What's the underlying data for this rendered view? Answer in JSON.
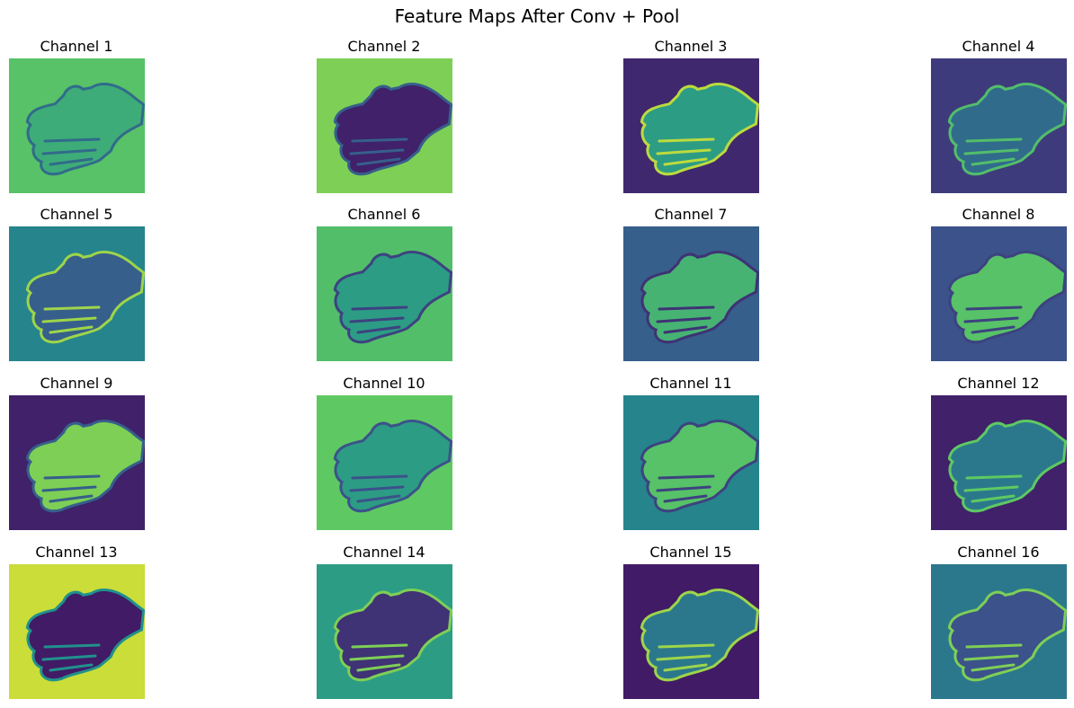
{
  "figure": {
    "title": "Feature Maps After Conv + Pool",
    "colormap": [
      "#440154",
      "#3b528b",
      "#21918c",
      "#5ec962",
      "#fde725"
    ],
    "panels": [
      {
        "title": "Channel 1",
        "bg": 0.72,
        "hand": 0.62,
        "edge": 0.35
      },
      {
        "title": "Channel 2",
        "bg": 0.8,
        "hand": 0.1,
        "edge": 0.3
      },
      {
        "title": "Channel 3",
        "bg": 0.12,
        "hand": 0.55,
        "edge": 0.9
      },
      {
        "title": "Channel 4",
        "bg": 0.18,
        "hand": 0.35,
        "edge": 0.7
      },
      {
        "title": "Channel 5",
        "bg": 0.45,
        "hand": 0.3,
        "edge": 0.85
      },
      {
        "title": "Channel 6",
        "bg": 0.7,
        "hand": 0.55,
        "edge": 0.2
      },
      {
        "title": "Channel 7",
        "bg": 0.3,
        "hand": 0.65,
        "edge": 0.15
      },
      {
        "title": "Channel 8",
        "bg": 0.25,
        "hand": 0.72,
        "edge": 0.2
      },
      {
        "title": "Channel 9",
        "bg": 0.1,
        "hand": 0.8,
        "edge": 0.3
      },
      {
        "title": "Channel 10",
        "bg": 0.75,
        "hand": 0.55,
        "edge": 0.25
      },
      {
        "title": "Channel 11",
        "bg": 0.45,
        "hand": 0.72,
        "edge": 0.2
      },
      {
        "title": "Channel 12",
        "bg": 0.1,
        "hand": 0.4,
        "edge": 0.75
      },
      {
        "title": "Channel 13",
        "bg": 0.92,
        "hand": 0.08,
        "edge": 0.5
      },
      {
        "title": "Channel 14",
        "bg": 0.55,
        "hand": 0.15,
        "edge": 0.8
      },
      {
        "title": "Channel 15",
        "bg": 0.08,
        "hand": 0.4,
        "edge": 0.85
      },
      {
        "title": "Channel 16",
        "bg": 0.4,
        "hand": 0.25,
        "edge": 0.8
      }
    ]
  }
}
